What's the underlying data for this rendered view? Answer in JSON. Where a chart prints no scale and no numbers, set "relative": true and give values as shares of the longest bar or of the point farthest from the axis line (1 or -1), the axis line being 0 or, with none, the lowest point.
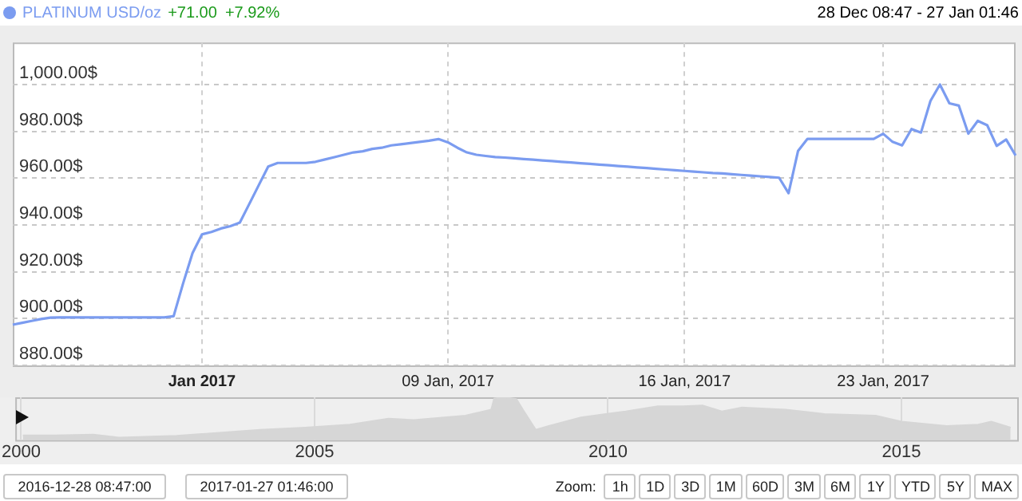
{
  "chart_data": [
    {
      "type": "line",
      "legend": "top left",
      "grid": true,
      "annotations": [
        "+71.00",
        "+7.92%",
        "28 Dec 08:47 - 27 Jan 01:46"
      ],
      "categories": [
        null,
        null,
        null,
        null,
        null,
        null,
        null,
        null,
        null,
        null,
        null,
        null,
        null,
        null,
        null,
        null,
        null,
        null,
        null,
        null,
        "Jan 2017",
        null,
        null,
        null,
        null,
        null,
        null,
        null,
        null,
        null,
        null,
        null,
        null,
        null,
        null,
        null,
        null,
        null,
        null,
        null,
        null,
        null,
        null,
        null,
        null,
        null,
        "09 Jan, 2017",
        null,
        null,
        null,
        null,
        null,
        null,
        null,
        null,
        null,
        null,
        null,
        null,
        null,
        null,
        null,
        null,
        null,
        null,
        null,
        null,
        null,
        null,
        null,
        null,
        "16 Jan, 2017",
        null,
        null,
        null,
        null,
        null,
        null,
        null,
        null,
        null,
        null,
        null,
        null,
        null,
        null,
        null,
        null,
        null,
        null,
        null,
        null,
        "23 Jan, 2017",
        null,
        null,
        null,
        null,
        null,
        null,
        null,
        null,
        null,
        null,
        null,
        null,
        null,
        null
      ],
      "ylim": [
        880,
        1018
      ],
      "yticks": [
        {
          "value": 880,
          "label": "880.00$"
        },
        {
          "value": 900,
          "label": "900.00$"
        },
        {
          "value": 920,
          "label": "920.00$"
        },
        {
          "value": 940,
          "label": "940.00$"
        },
        {
          "value": 960,
          "label": "960.00$"
        },
        {
          "value": 980,
          "label": "980.00$"
        },
        {
          "value": 1000,
          "label": "1,000.00$"
        }
      ],
      "series": [
        {
          "name": "PLATINUM USD/oz",
          "color": "#7b9cf0",
          "values": [
            897.4,
            898.2,
            899,
            899.8,
            900.4,
            900.5,
            900.5,
            900.5,
            900.5,
            900.5,
            900.5,
            900.5,
            900.5,
            900.5,
            900.5,
            900.5,
            900.5,
            901,
            915,
            928,
            936,
            937,
            938.5,
            939.5,
            941,
            949,
            957,
            965,
            966.5,
            966.5,
            966.5,
            966.5,
            967,
            968,
            969,
            970,
            971,
            971.5,
            972.5,
            973,
            974,
            974.5,
            975,
            975.5,
            976,
            976.7,
            975.3,
            973,
            971,
            970,
            969.5,
            969,
            968.8,
            968.5,
            968.2,
            967.9,
            967.6,
            967.3,
            967,
            966.7,
            966.4,
            966.1,
            965.8,
            965.5,
            965.2,
            964.9,
            964.6,
            964.3,
            964,
            963.7,
            963.4,
            963.1,
            962.8,
            962.5,
            962.2,
            962,
            961.7,
            961.4,
            961.1,
            960.8,
            960.5,
            960.2,
            953.6,
            971.6,
            976.8,
            976.8,
            976.8,
            976.8,
            976.8,
            976.8,
            976.8,
            976.8,
            979,
            975.5,
            974,
            981,
            979.5,
            993,
            1000,
            992,
            991,
            979,
            984.5,
            982.6,
            973.8,
            976.5,
            969.7
          ]
        }
      ]
    },
    {
      "type": "area",
      "relative": true,
      "grid": "x",
      "tick_labels": "x",
      "annotations": [
        "2016-12-28 08:47:00",
        "2017-01-27 01:46:00",
        "Zoom:",
        "1h",
        "1D",
        "3D",
        "1M",
        "60D",
        "3M",
        "6M",
        "1Y",
        "YTD",
        "5Y",
        "MAX"
      ],
      "xlim": [
        1999.9,
        2017
      ],
      "xticks": [
        2000,
        2005,
        2010,
        2015
      ],
      "x": [
        2000.03,
        2000.57,
        2001.23,
        2001.67,
        2002.65,
        2004.07,
        2004.84,
        2005.6,
        2006.26,
        2006.69,
        2007.57,
        2008.01,
        2008.06,
        2008.22,
        2008.44,
        2008.55,
        2008.77,
        2008.99,
        2009.54,
        2010.3,
        2010.85,
        2011.28,
        2011.61,
        2011.94,
        2012.27,
        2013.03,
        2013.69,
        2014.56,
        2015,
        2015.77,
        2016.31,
        2016.53,
        2016.86
      ],
      "series": [
        {
          "color": "#d6d6d6",
          "values": [
            0.11,
            0.11,
            0.13,
            0.06,
            0.1,
            0.24,
            0.29,
            0.36,
            0.5,
            0.47,
            0.57,
            0.71,
            0.97,
            1,
            0.96,
            0.71,
            0.24,
            0.33,
            0.53,
            0.67,
            0.79,
            0.79,
            0.81,
            0.67,
            0.76,
            0.71,
            0.61,
            0.57,
            0.43,
            0.33,
            0.36,
            0.43,
            0.29
          ]
        }
      ]
    }
  ]
}
